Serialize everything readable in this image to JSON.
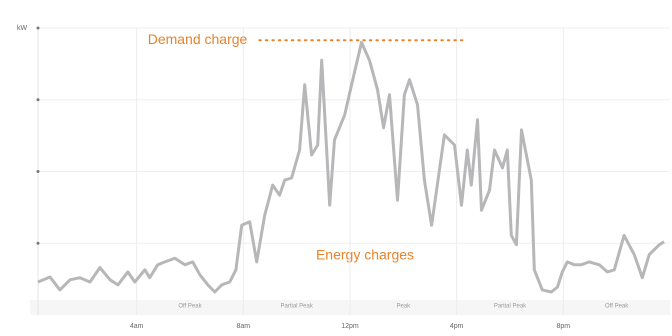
{
  "chart_data": {
    "type": "line",
    "y_label": "kW",
    "x": [
      0.3,
      0.75,
      1.12,
      1.5,
      1.87,
      2.25,
      2.62,
      3.0,
      3.3,
      3.67,
      3.93,
      4.31,
      4.49,
      4.79,
      5.06,
      5.43,
      5.81,
      6.1,
      6.37,
      6.67,
      6.93,
      7.19,
      7.49,
      7.72,
      7.94,
      8.24,
      8.5,
      8.8,
      9.1,
      9.36,
      9.55,
      9.81,
      10.11,
      10.3,
      10.56,
      10.79,
      10.94,
      11.24,
      11.42,
      11.8,
      12.06,
      12.43,
      12.73,
      13.03,
      13.26,
      13.48,
      13.78,
      14.04,
      14.23,
      14.53,
      14.79,
      15.06,
      15.54,
      15.92,
      16.18,
      16.4,
      16.55,
      16.78,
      16.93,
      17.23,
      17.42,
      17.72,
      17.9,
      18.05,
      18.24,
      18.43,
      18.8,
      18.91,
      19.21,
      19.55,
      19.78,
      19.96,
      20.15,
      20.41,
      20.67,
      20.97,
      21.35,
      21.65,
      21.91,
      22.28,
      22.66,
      22.96,
      23.22,
      23.6,
      23.78
    ],
    "series": [
      {
        "name": "kW",
        "color": "#b7b7ba",
        "values": [
          0.46,
          0.53,
          0.35,
          0.49,
          0.52,
          0.46,
          0.66,
          0.49,
          0.42,
          0.6,
          0.46,
          0.63,
          0.52,
          0.7,
          0.74,
          0.79,
          0.7,
          0.74,
          0.56,
          0.42,
          0.32,
          0.42,
          0.46,
          0.63,
          1.25,
          1.3,
          0.74,
          1.39,
          1.81,
          1.67,
          1.88,
          1.91,
          2.3,
          3.21,
          2.23,
          2.37,
          3.55,
          1.53,
          2.44,
          2.79,
          3.21,
          3.8,
          3.55,
          3.14,
          2.61,
          3.07,
          1.6,
          3.07,
          3.28,
          2.93,
          1.88,
          1.25,
          2.51,
          2.37,
          1.53,
          2.3,
          1.81,
          2.72,
          1.46,
          1.74,
          2.3,
          2.05,
          2.3,
          1.11,
          0.98,
          2.58,
          1.88,
          0.63,
          0.35,
          0.32,
          0.39,
          0.6,
          0.74,
          0.7,
          0.7,
          0.74,
          0.7,
          0.6,
          0.63,
          1.11,
          0.84,
          0.52,
          0.84,
          0.98,
          1.02
        ]
      }
    ],
    "xlim": [
      0,
      24
    ],
    "xticks": [
      {
        "value": 4,
        "label": "4am"
      },
      {
        "value": 8,
        "label": "8am"
      },
      {
        "value": 12,
        "label": "12pm"
      },
      {
        "value": 16,
        "label": "4pm"
      },
      {
        "value": 20,
        "label": "8pm"
      }
    ],
    "ylim": [
      0,
      4
    ],
    "yticks": [
      1,
      2,
      3,
      4
    ],
    "periods": [
      {
        "label": "Off Peak",
        "from": 4,
        "to": 8
      },
      {
        "label": "Partial Peak",
        "from": 8,
        "to": 12
      },
      {
        "label": "Peak",
        "from": 12,
        "to": 16
      },
      {
        "label": "Partial Peak",
        "from": 16,
        "to": 20
      },
      {
        "label": "Off Peak",
        "from": 20,
        "to": 24
      }
    ],
    "demand_charge": {
      "text": "Demand charge",
      "value": 3.83,
      "from": 8.6,
      "to": 16.3,
      "color": "#e8832a"
    },
    "energy_charges": "Energy charges",
    "grid": true
  }
}
